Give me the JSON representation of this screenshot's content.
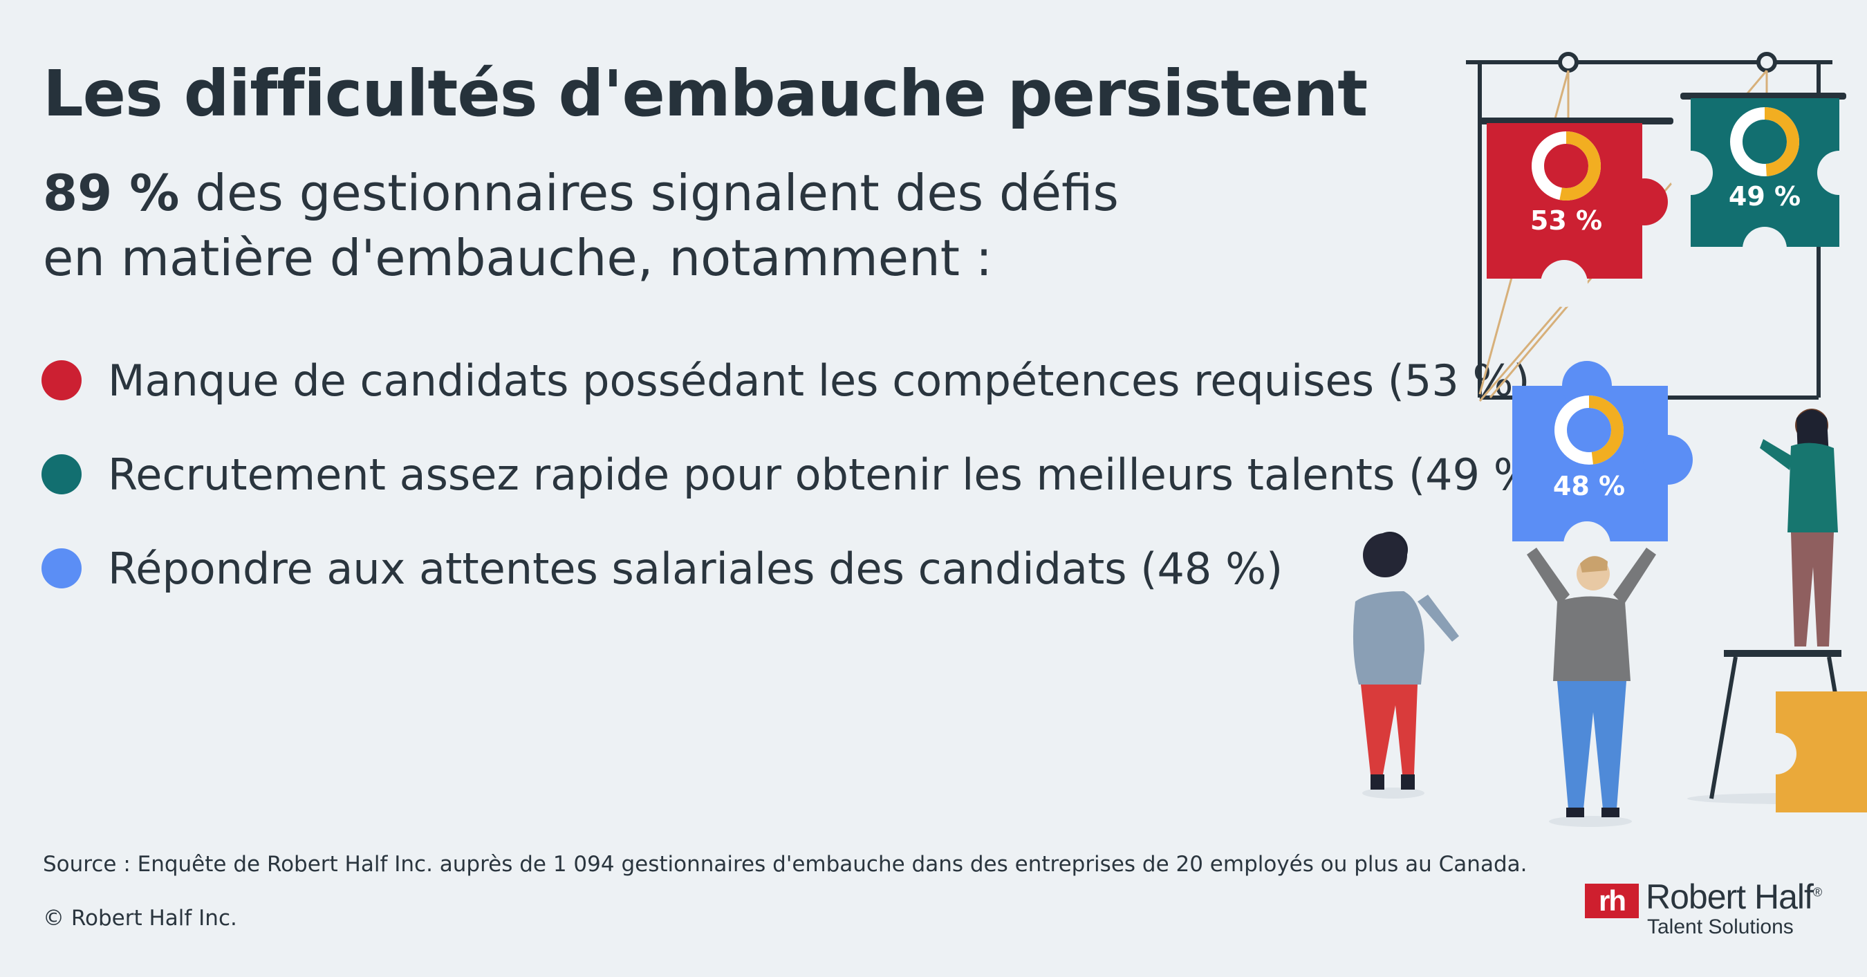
{
  "title": "Les difficultés d'embauche persistent",
  "subtitle": {
    "lead": "89 %",
    "line1_rest": " des gestionnaires signalent des défis",
    "line2": "en matière d'embauche, notamment :"
  },
  "bullets": [
    {
      "text": "Manque de candidats possédant les compétences requises (53 %)",
      "color": "#cc2032",
      "percent": 53
    },
    {
      "text": "Recrutement assez rapide pour obtenir les meilleurs talents (49 %)",
      "color": "#126f70",
      "percent": 49
    },
    {
      "text": "Répondre aux attentes salariales des candidats (48 %)",
      "color": "#5b8ef5",
      "percent": 48
    }
  ],
  "puzzle": {
    "red": {
      "label": "53 %",
      "value": 53,
      "color": "#cc2032"
    },
    "teal": {
      "label": "49 %",
      "value": 49,
      "color": "#126f70"
    },
    "blue": {
      "label": "48 %",
      "value": 48,
      "color": "#5b8ef5"
    },
    "ring_color": "#f2ae21"
  },
  "source": "Source : Enquête de Robert Half Inc. auprès de 1 094 gestionnaires d'embauche dans des entreprises de 20 employés ou plus au Canada.",
  "copyright": "© Robert Half Inc.",
  "logo": {
    "mark": "rh",
    "name": "Robert Half",
    "registered": "®",
    "tagline": "Talent Solutions"
  }
}
